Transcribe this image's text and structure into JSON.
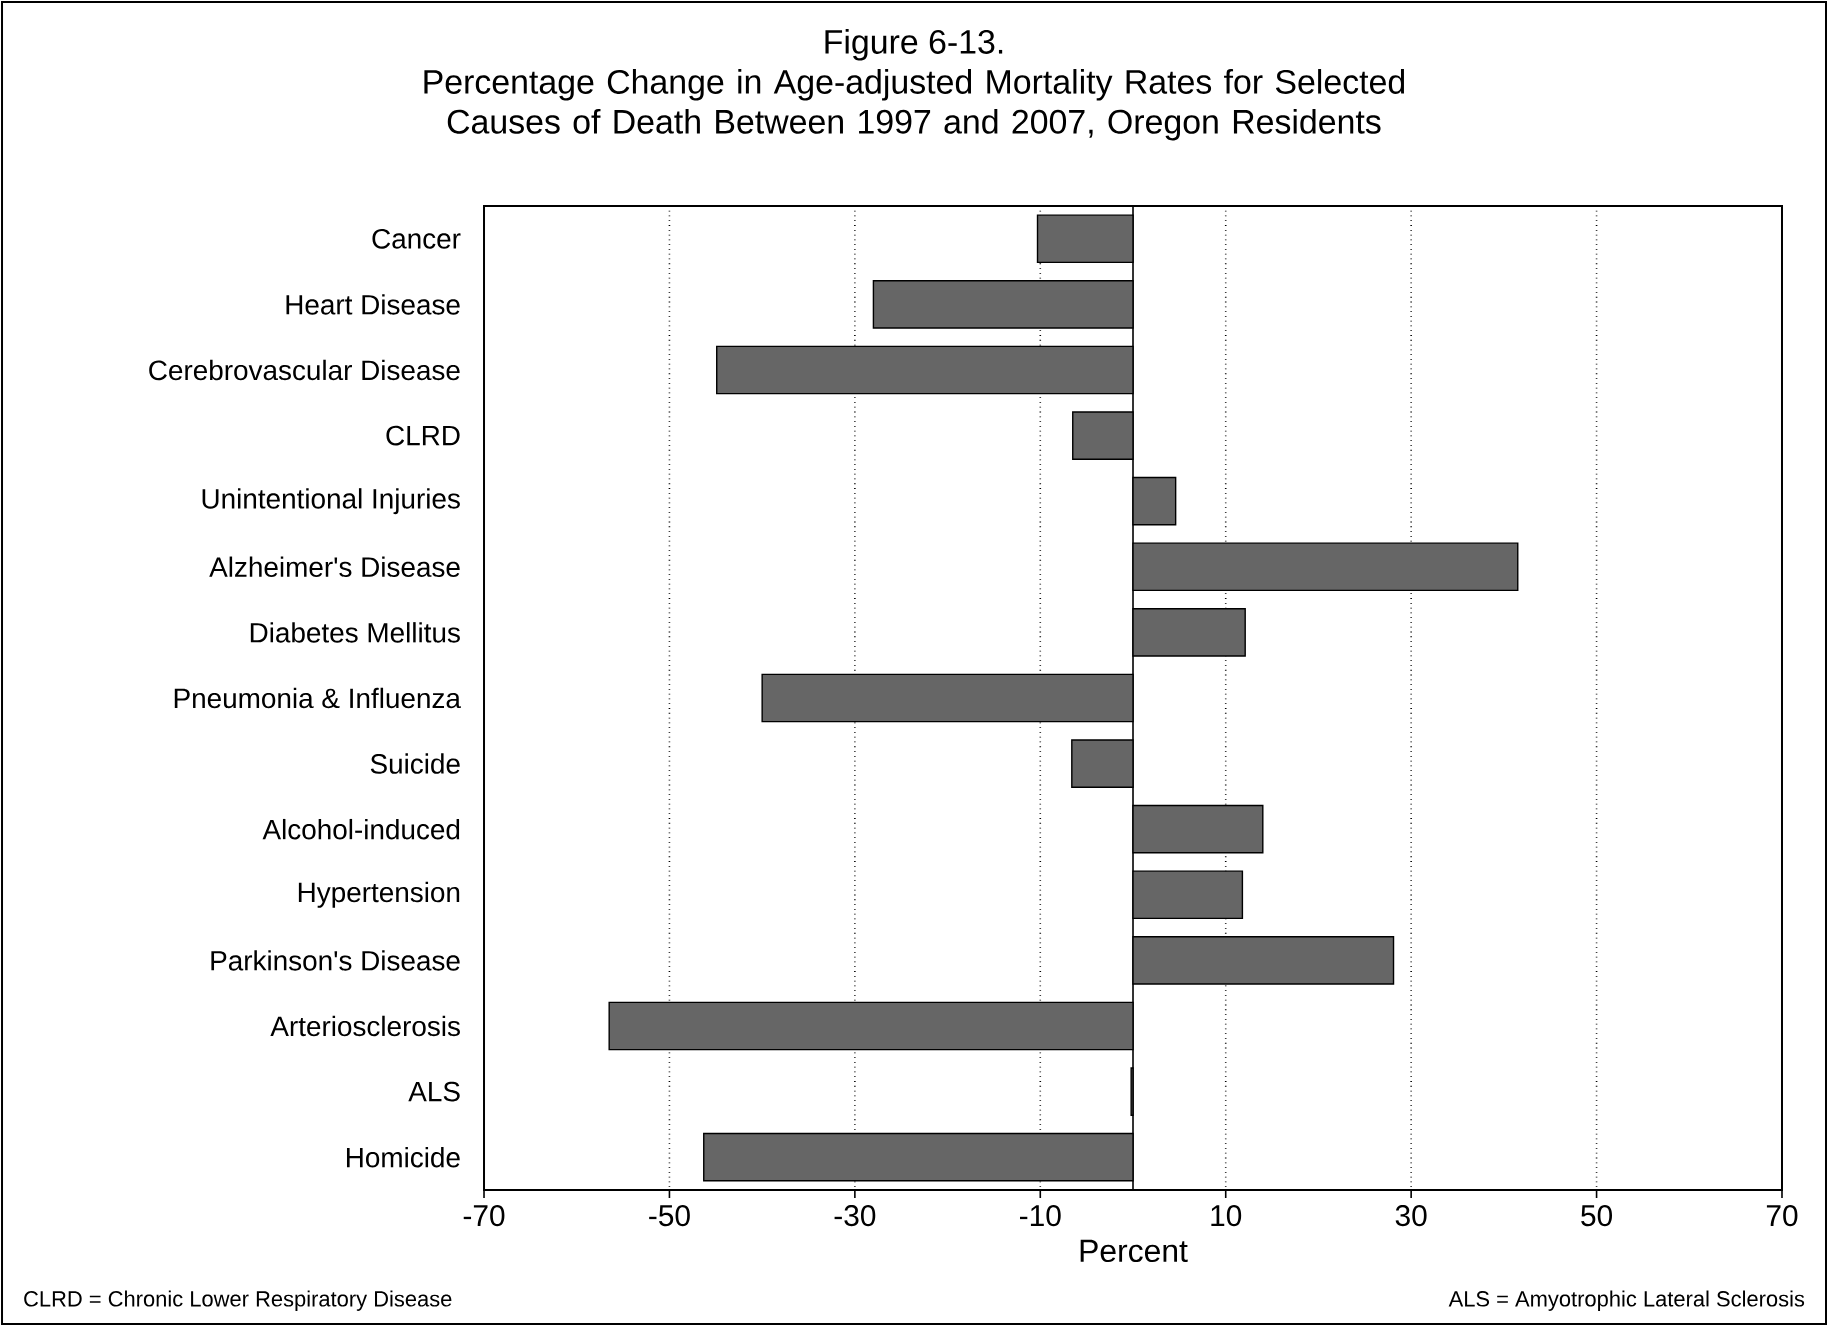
{
  "chart_data": {
    "type": "bar",
    "orientation": "horizontal",
    "title": "Figure 6-13.",
    "subtitle": "Percentage Change in Age-adjusted Mortality Rates for Selected Causes of Death Between 1997 and 2007, Oregon Residents",
    "xlabel": "Percent",
    "categories": [
      "Cancer",
      "Heart Disease",
      "Cerebrovascular Disease",
      "CLRD",
      "Unintentional Injuries",
      "Alzheimer's Disease",
      "Diabetes Mellitus",
      "Pneumonia & Influenza",
      "Suicide",
      "Alcohol-induced",
      "Hypertension",
      "Parkinson's Disease",
      "Arteriosclerosis",
      "ALS",
      "Homicide"
    ],
    "values": [
      -10.3,
      -28.0,
      -44.9,
      -6.5,
      4.6,
      41.5,
      12.1,
      -40.0,
      -6.6,
      14.0,
      11.8,
      28.1,
      -56.5,
      -0.2,
      -46.3
    ],
    "color": "#666666",
    "xlim": [
      -70,
      70
    ],
    "xticks": [
      -70,
      -50,
      -30,
      -10,
      10,
      30,
      50,
      70
    ],
    "grid": "x",
    "annotations": [
      "CLRD = Chronic Lower Respiratory Disease",
      "ALS = Amyotrophic Lateral Sclerosis"
    ]
  }
}
